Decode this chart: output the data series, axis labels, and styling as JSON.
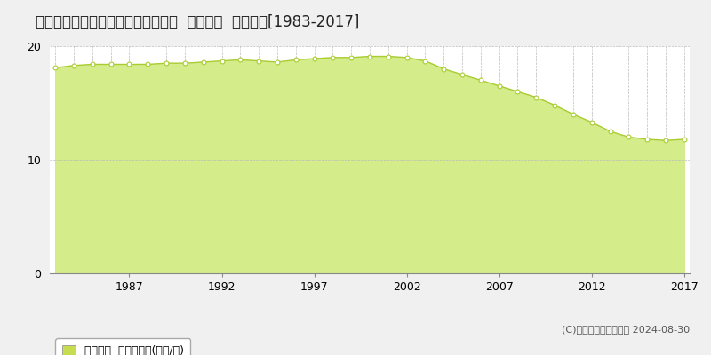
{
  "title": "青森県弘前市大字田町１丁目３番４  地価公示  地価推移[1983-2017]",
  "years": [
    1983,
    1984,
    1985,
    1986,
    1987,
    1988,
    1989,
    1990,
    1991,
    1992,
    1993,
    1994,
    1995,
    1996,
    1997,
    1998,
    1999,
    2000,
    2001,
    2002,
    2003,
    2004,
    2005,
    2006,
    2007,
    2008,
    2009,
    2010,
    2011,
    2012,
    2013,
    2014,
    2015,
    2016,
    2017
  ],
  "values": [
    18.1,
    18.3,
    18.4,
    18.4,
    18.4,
    18.4,
    18.5,
    18.5,
    18.6,
    18.7,
    18.8,
    18.7,
    18.6,
    18.8,
    18.9,
    19.0,
    19.0,
    19.1,
    19.1,
    19.0,
    18.7,
    18.0,
    17.5,
    17.0,
    16.5,
    16.0,
    15.5,
    14.8,
    14.0,
    13.3,
    12.5,
    12.0,
    11.8,
    11.7,
    11.8
  ],
  "line_color": "#aacc33",
  "fill_color": "#d4ec8a",
  "marker_color": "#ffffff",
  "marker_edge_color": "#aacc33",
  "background_color": "#f0f0f0",
  "plot_bg_color": "#ffffff",
  "grid_color": "#bbbbbb",
  "yticks": [
    0,
    10,
    20
  ],
  "xticks": [
    1987,
    1992,
    1997,
    2002,
    2007,
    2012,
    2017
  ],
  "ylim": [
    0,
    20
  ],
  "xlim_min": 1983,
  "xlim_max": 2017,
  "legend_label": "地価公示  平均坪単価(万円/坪)",
  "legend_color": "#c8dc50",
  "copyright_text": "(C)土地価格ドットコム 2024-08-30",
  "title_fontsize": 12,
  "tick_fontsize": 9,
  "legend_fontsize": 9,
  "copyright_fontsize": 8
}
